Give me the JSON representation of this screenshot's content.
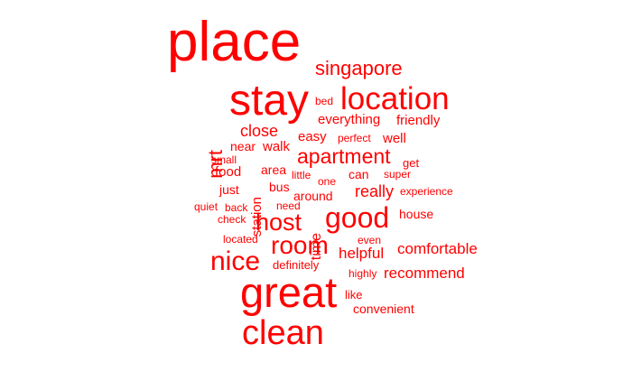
{
  "word_cloud": {
    "color": "#ff0000",
    "words": [
      {
        "text": "place",
        "rank": 1
      },
      {
        "text": "great",
        "rank": 2
      },
      {
        "text": "stay",
        "rank": 3
      },
      {
        "text": "clean",
        "rank": 4
      },
      {
        "text": "location",
        "rank": 5
      },
      {
        "text": "good",
        "rank": 6
      },
      {
        "text": "room",
        "rank": 7
      },
      {
        "text": "nice",
        "rank": 8
      },
      {
        "text": "host",
        "rank": 9
      },
      {
        "text": "apartment",
        "rank": 10
      },
      {
        "text": "singapore",
        "rank": 11
      },
      {
        "text": "mrt",
        "rank": 12,
        "vertical": true
      },
      {
        "text": "close",
        "rank": 13
      },
      {
        "text": "really",
        "rank": 14
      },
      {
        "text": "comfortable",
        "rank": 15
      },
      {
        "text": "recommend",
        "rank": 16
      },
      {
        "text": "helpful",
        "rank": 17
      },
      {
        "text": "everything",
        "rank": 18
      },
      {
        "text": "friendly",
        "rank": 19
      },
      {
        "text": "easy",
        "rank": 20
      },
      {
        "text": "well",
        "rank": 21
      },
      {
        "text": "walk",
        "rank": 22
      },
      {
        "text": "food",
        "rank": 23
      },
      {
        "text": "just",
        "rank": 24
      },
      {
        "text": "station",
        "rank": 25,
        "vertical": true
      },
      {
        "text": "time",
        "rank": 26,
        "vertical": true
      },
      {
        "text": "near",
        "rank": 27
      },
      {
        "text": "bus",
        "rank": 28
      },
      {
        "text": "around",
        "rank": 29
      },
      {
        "text": "can",
        "rank": 30
      },
      {
        "text": "area",
        "rank": 31
      },
      {
        "text": "definitely",
        "rank": 32
      },
      {
        "text": "convenient",
        "rank": 33
      },
      {
        "text": "house",
        "rank": 34
      },
      {
        "text": "get",
        "rank": 35
      },
      {
        "text": "like",
        "rank": 36
      },
      {
        "text": "bed",
        "rank": 37
      },
      {
        "text": "perfect",
        "rank": 38
      },
      {
        "text": "small",
        "rank": 39
      },
      {
        "text": "one",
        "rank": 40
      },
      {
        "text": "little",
        "rank": 41
      },
      {
        "text": "super",
        "rank": 42
      },
      {
        "text": "experience",
        "rank": 43
      },
      {
        "text": "quiet",
        "rank": 44
      },
      {
        "text": "back",
        "rank": 45
      },
      {
        "text": "need",
        "rank": 46
      },
      {
        "text": "check",
        "rank": 47
      },
      {
        "text": "located",
        "rank": 48
      },
      {
        "text": "even",
        "rank": 49
      },
      {
        "text": "highly",
        "rank": 50
      }
    ]
  }
}
